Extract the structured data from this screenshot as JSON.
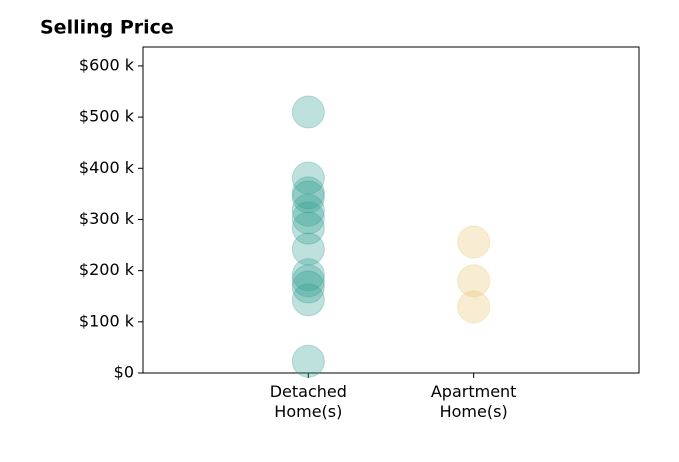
{
  "chart_data": {
    "type": "strip",
    "title": "Selling Price",
    "categories": [
      "Detached\nHome(s)",
      "Apartment\nHome(s)"
    ],
    "colors": [
      "#2a9d8f",
      "#e9c46a"
    ],
    "values": [
      [
        510000,
        381000,
        352000,
        344000,
        318000,
        303000,
        283000,
        242000,
        192000,
        180000,
        168000,
        143000,
        23000
      ],
      [
        256000,
        180000,
        129000
      ]
    ],
    "ylim": [
      0,
      637000
    ],
    "yticks": [
      {
        "value": 0,
        "label": "$0"
      },
      {
        "value": 100000,
        "label": "$100 k"
      },
      {
        "value": 200000,
        "label": "$200 k"
      },
      {
        "value": 300000,
        "label": "$300 k"
      },
      {
        "value": 400000,
        "label": "$400 k"
      },
      {
        "value": 500000,
        "label": "$500 k"
      },
      {
        "value": 600000,
        "label": "$600 k"
      }
    ],
    "grid": false
  }
}
